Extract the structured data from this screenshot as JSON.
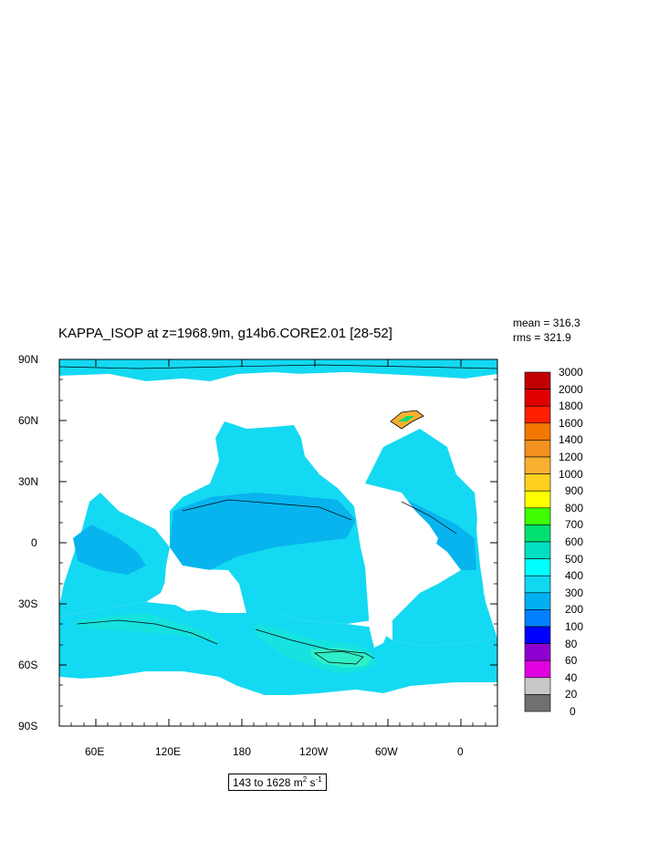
{
  "title": "KAPPA_ISOP at z=1968.9m, g14b6.CORE2.01 [28-52]",
  "stats": {
    "mean": "mean = 316.3",
    "rms": "rms = 321.9"
  },
  "units": {
    "range": "143 to 1628 m",
    "exp1": "2",
    "mid": " s",
    "exp2": "-1"
  },
  "lat_labels": [
    "90N",
    "60N",
    "30N",
    "0",
    "30S",
    "60S",
    "90S"
  ],
  "lon_labels": [
    "60E",
    "120E",
    "180",
    "120W",
    "60W",
    "0"
  ],
  "colorbar": {
    "levels": [
      "3000",
      "2000",
      "1800",
      "1600",
      "1400",
      "1200",
      "1000",
      "900",
      "800",
      "700",
      "600",
      "500",
      "400",
      "300",
      "200",
      "100",
      "80",
      "60",
      "40",
      "20",
      "0"
    ],
    "colors": [
      "#c00000",
      "#e00000",
      "#ff2000",
      "#f27800",
      "#f29020",
      "#f9b030",
      "#ffd020",
      "#ffff00",
      "#40ff00",
      "#00e070",
      "#00e0c0",
      "#00ffff",
      "#10d8f0",
      "#00b0f0",
      "#0080ff",
      "#0000ff",
      "#9000d0",
      "#e000e0",
      "#c8c8c8",
      "#707070"
    ]
  },
  "colors": {
    "ocean_main": "#14d9f2",
    "ocean_200_300": "#08b4ee",
    "ocean_400_500": "#16e2df",
    "ocean_500_600": "#2eefc8",
    "land": "#ffffff"
  }
}
